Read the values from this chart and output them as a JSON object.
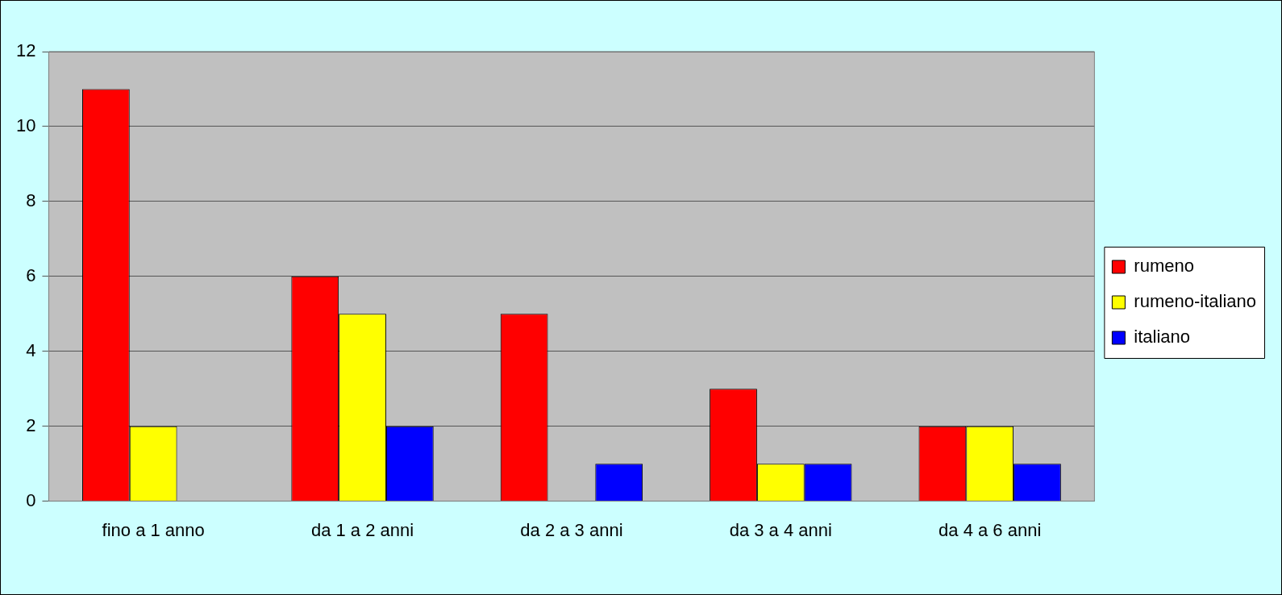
{
  "chart_data": {
    "type": "bar",
    "categories": [
      "fino a 1 anno",
      "da 1 a 2 anni",
      "da 2 a 3 anni",
      "da 3 a 4 anni",
      "da 4 a 6 anni"
    ],
    "series": [
      {
        "name": "rumeno",
        "color": "#ff0000",
        "values": [
          11,
          6,
          5,
          3,
          2
        ]
      },
      {
        "name": "rumeno-italiano",
        "color": "#ffff00",
        "values": [
          2,
          5,
          0,
          1,
          2
        ]
      },
      {
        "name": "italiano",
        "color": "#0000ff",
        "values": [
          0,
          2,
          1,
          1,
          1
        ]
      }
    ],
    "ylim": [
      0,
      12
    ],
    "yticks": [
      0,
      2,
      4,
      6,
      8,
      10,
      12
    ],
    "grid": "y",
    "legend": "right"
  }
}
